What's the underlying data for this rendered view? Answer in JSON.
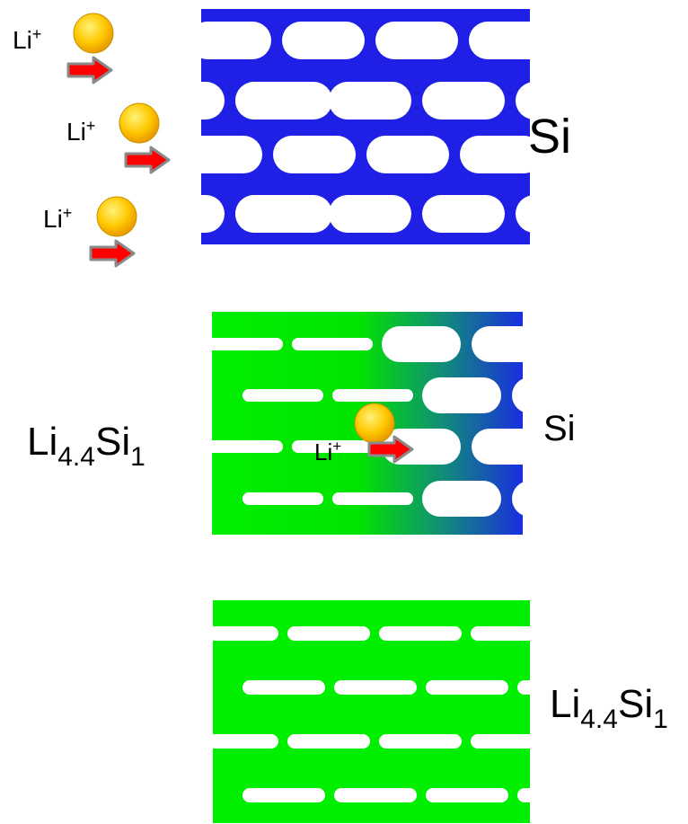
{
  "panels": [
    {
      "right_label": "Si",
      "ions": [
        {
          "symbol": "Li",
          "charge": "+"
        },
        {
          "symbol": "Li",
          "charge": "+"
        },
        {
          "symbol": "Li",
          "charge": "+"
        }
      ]
    },
    {
      "left_label": {
        "element1": "Li",
        "subscript1": "4.4",
        "element2": "Si",
        "subscript2": "1"
      },
      "right_label": "Si",
      "ions": [
        {
          "symbol": "Li",
          "charge": "+"
        }
      ]
    },
    {
      "right_label": {
        "element1": "Li",
        "subscript1": "4.4",
        "element2": "Si",
        "subscript2": "1"
      }
    }
  ]
}
